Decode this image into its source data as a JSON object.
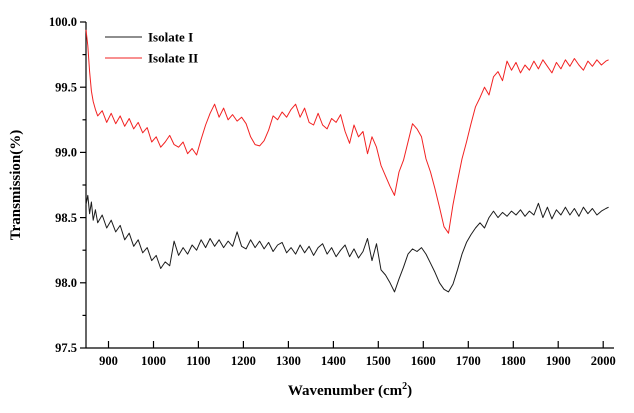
{
  "chart": {
    "xlabel_prefix": "Wavenumber (cm",
    "xlabel_sup": "2",
    "xlabel_suffix": ")",
    "ylabel": "Transmission(%)"
  },
  "chart_data": {
    "type": "line",
    "title": "",
    "xlabel": "Wavenumber (cm2)",
    "ylabel": "Transmission(%)",
    "grid": false,
    "legend_position": "top-left",
    "xlim": [
      850,
      2024
    ],
    "ylim": [
      97.5,
      100.0
    ],
    "x_ticks": [
      900,
      1000,
      1100,
      1200,
      1300,
      1400,
      1500,
      1600,
      1700,
      1800,
      1900,
      2000
    ],
    "y_ticks": [
      100.0,
      99.5,
      99.0,
      98.5,
      98.0,
      97.5
    ],
    "y_minor_ticks": [
      99.75,
      99.25,
      98.75,
      98.25,
      97.75
    ],
    "axis_color": "#000000",
    "x": [
      850,
      854,
      858,
      862,
      866,
      871,
      876,
      886,
      896,
      906,
      916,
      926,
      936,
      946,
      956,
      966,
      976,
      986,
      996,
      1006,
      1016,
      1026,
      1036,
      1046,
      1056,
      1066,
      1076,
      1086,
      1096,
      1106,
      1116,
      1126,
      1136,
      1146,
      1156,
      1166,
      1176,
      1186,
      1196,
      1206,
      1216,
      1226,
      1236,
      1246,
      1256,
      1266,
      1276,
      1286,
      1296,
      1306,
      1316,
      1326,
      1336,
      1346,
      1356,
      1366,
      1376,
      1386,
      1396,
      1406,
      1416,
      1426,
      1436,
      1446,
      1456,
      1466,
      1476,
      1486,
      1496,
      1506,
      1516,
      1526,
      1536,
      1546,
      1556,
      1566,
      1576,
      1586,
      1596,
      1606,
      1616,
      1626,
      1636,
      1646,
      1656,
      1666,
      1676,
      1686,
      1696,
      1706,
      1716,
      1726,
      1736,
      1746,
      1756,
      1766,
      1776,
      1786,
      1796,
      1806,
      1816,
      1826,
      1836,
      1846,
      1856,
      1866,
      1876,
      1886,
      1896,
      1906,
      1916,
      1926,
      1936,
      1946,
      1956,
      1966,
      1976,
      1986,
      1996,
      2006,
      2012
    ],
    "series": [
      {
        "name": "Isolate I",
        "color": "#1c1c1c",
        "values": [
          98.6,
          98.67,
          98.53,
          98.62,
          98.48,
          98.56,
          98.46,
          98.52,
          98.42,
          98.48,
          98.39,
          98.44,
          98.33,
          98.38,
          98.28,
          98.33,
          98.23,
          98.27,
          98.17,
          98.21,
          98.11,
          98.16,
          98.13,
          98.32,
          98.21,
          98.27,
          98.22,
          98.29,
          98.25,
          98.33,
          98.27,
          98.34,
          98.28,
          98.33,
          98.27,
          98.32,
          98.28,
          98.39,
          98.28,
          98.26,
          98.33,
          98.27,
          98.32,
          98.26,
          98.31,
          98.24,
          98.29,
          98.31,
          98.23,
          98.27,
          98.22,
          98.29,
          98.23,
          98.28,
          98.21,
          98.27,
          98.3,
          98.22,
          98.27,
          98.2,
          98.25,
          98.29,
          98.2,
          98.26,
          98.19,
          98.24,
          98.34,
          98.17,
          98.3,
          98.1,
          98.06,
          98.0,
          97.93,
          98.03,
          98.12,
          98.22,
          98.26,
          98.24,
          98.27,
          98.22,
          98.15,
          98.08,
          98.0,
          97.95,
          97.93,
          97.99,
          98.1,
          98.22,
          98.31,
          98.37,
          98.42,
          98.46,
          98.42,
          98.5,
          98.55,
          98.5,
          98.54,
          98.51,
          98.55,
          98.52,
          98.56,
          98.51,
          98.55,
          98.52,
          98.61,
          98.5,
          98.58,
          98.49,
          98.56,
          98.52,
          98.58,
          98.52,
          98.57,
          98.51,
          98.58,
          98.53,
          98.57,
          98.52,
          98.55,
          98.57,
          98.58
        ]
      },
      {
        "name": "Isolate II",
        "color": "#f22222",
        "values": [
          99.94,
          99.82,
          99.62,
          99.47,
          99.39,
          99.33,
          99.28,
          99.32,
          99.23,
          99.3,
          99.22,
          99.28,
          99.2,
          99.26,
          99.18,
          99.23,
          99.15,
          99.19,
          99.08,
          99.12,
          99.04,
          99.08,
          99.13,
          99.06,
          99.04,
          99.08,
          98.99,
          99.03,
          98.98,
          99.1,
          99.21,
          99.3,
          99.37,
          99.27,
          99.34,
          99.25,
          99.29,
          99.24,
          99.27,
          99.22,
          99.12,
          99.06,
          99.05,
          99.09,
          99.17,
          99.28,
          99.25,
          99.31,
          99.27,
          99.33,
          99.37,
          99.27,
          99.34,
          99.23,
          99.21,
          99.3,
          99.21,
          99.18,
          99.26,
          99.23,
          99.29,
          99.16,
          99.07,
          99.21,
          99.12,
          99.16,
          98.99,
          99.12,
          99.04,
          98.9,
          98.82,
          98.74,
          98.67,
          98.85,
          98.94,
          99.08,
          99.22,
          99.18,
          99.12,
          98.95,
          98.85,
          98.72,
          98.58,
          98.43,
          98.38,
          98.6,
          98.78,
          98.95,
          99.08,
          99.22,
          99.35,
          99.42,
          99.5,
          99.44,
          99.58,
          99.62,
          99.55,
          99.7,
          99.63,
          99.69,
          99.61,
          99.67,
          99.63,
          99.7,
          99.64,
          99.71,
          99.66,
          99.61,
          99.69,
          99.64,
          99.71,
          99.66,
          99.72,
          99.67,
          99.63,
          99.7,
          99.66,
          99.71,
          99.67,
          99.7,
          99.71
        ]
      }
    ]
  }
}
